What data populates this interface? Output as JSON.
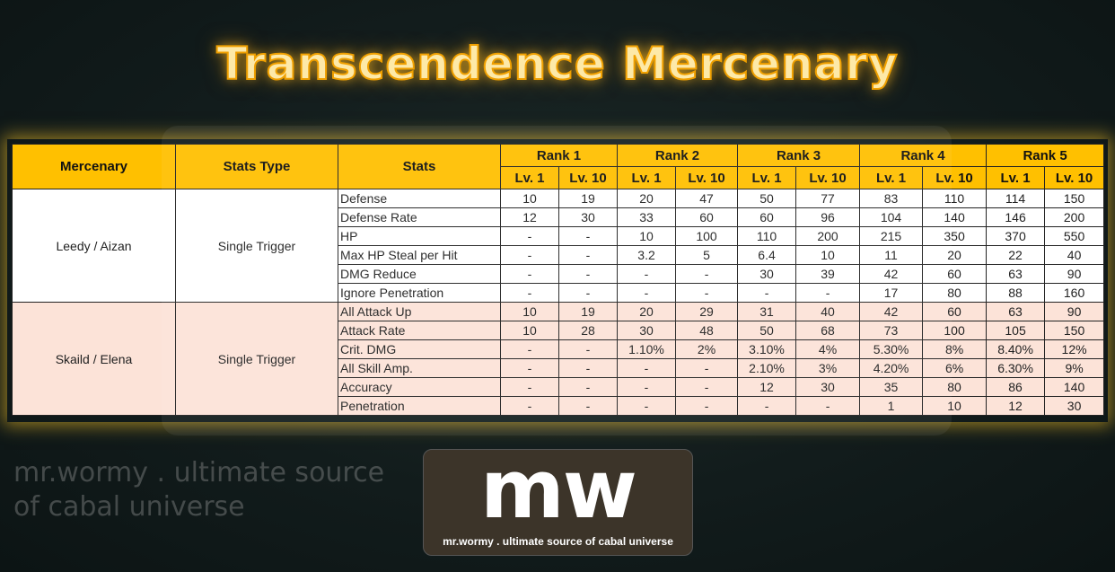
{
  "title": "Transcendence Mercenary",
  "header": {
    "mercenary": "Mercenary",
    "stats_type": "Stats Type",
    "stats": "Stats",
    "ranks": [
      "Rank 1",
      "Rank 2",
      "Rank 3",
      "Rank 4",
      "Rank 5"
    ],
    "levels": [
      "Lv. 1",
      "Lv. 10"
    ]
  },
  "groups": [
    {
      "mercenary": "Leedy / Aizan",
      "stats_type": "Single Trigger",
      "rows": [
        {
          "stat": "Defense",
          "values": [
            "10",
            "19",
            "20",
            "47",
            "50",
            "77",
            "83",
            "110",
            "114",
            "150"
          ]
        },
        {
          "stat": "Defense Rate",
          "values": [
            "12",
            "30",
            "33",
            "60",
            "60",
            "96",
            "104",
            "140",
            "146",
            "200"
          ]
        },
        {
          "stat": "HP",
          "values": [
            "-",
            "-",
            "10",
            "100",
            "110",
            "200",
            "215",
            "350",
            "370",
            "550"
          ]
        },
        {
          "stat": "Max HP Steal per Hit",
          "values": [
            "-",
            "-",
            "3.2",
            "5",
            "6.4",
            "10",
            "11",
            "20",
            "22",
            "40"
          ]
        },
        {
          "stat": "DMG Reduce",
          "values": [
            "-",
            "-",
            "-",
            "-",
            "30",
            "39",
            "42",
            "60",
            "63",
            "90"
          ]
        },
        {
          "stat": "Ignore Penetration",
          "values": [
            "-",
            "-",
            "-",
            "-",
            "-",
            "-",
            "17",
            "80",
            "88",
            "160"
          ]
        }
      ]
    },
    {
      "mercenary": "Skaild / Elena",
      "stats_type": "Single Trigger",
      "rows": [
        {
          "stat": "All Attack Up",
          "values": [
            "10",
            "19",
            "20",
            "29",
            "31",
            "40",
            "42",
            "60",
            "63",
            "90"
          ]
        },
        {
          "stat": "Attack Rate",
          "values": [
            "10",
            "28",
            "30",
            "48",
            "50",
            "68",
            "73",
            "100",
            "105",
            "150"
          ]
        },
        {
          "stat": "Crit. DMG",
          "values": [
            "-",
            "-",
            "1.10%",
            "2%",
            "3.10%",
            "4%",
            "5.30%",
            "8%",
            "8.40%",
            "12%"
          ]
        },
        {
          "stat": "All Skill Amp.",
          "values": [
            "-",
            "-",
            "-",
            "-",
            "2.10%",
            "3%",
            "4.20%",
            "6%",
            "6.30%",
            "9%"
          ]
        },
        {
          "stat": "Accuracy",
          "values": [
            "-",
            "-",
            "-",
            "-",
            "12",
            "30",
            "35",
            "80",
            "86",
            "140"
          ]
        },
        {
          "stat": "Penetration",
          "values": [
            "-",
            "-",
            "-",
            "-",
            "-",
            "-",
            "1",
            "10",
            "12",
            "30"
          ]
        }
      ]
    }
  ],
  "watermark": "mr.wormy . ultimate source of cabal universe",
  "logo": {
    "mark": "mw",
    "tagline": "mr.wormy . ultimate source of cabal universe"
  },
  "colors": {
    "header": "#ffc000",
    "group1": "#ffffff",
    "group2": "#fce3d8",
    "title": "#f0a000"
  }
}
